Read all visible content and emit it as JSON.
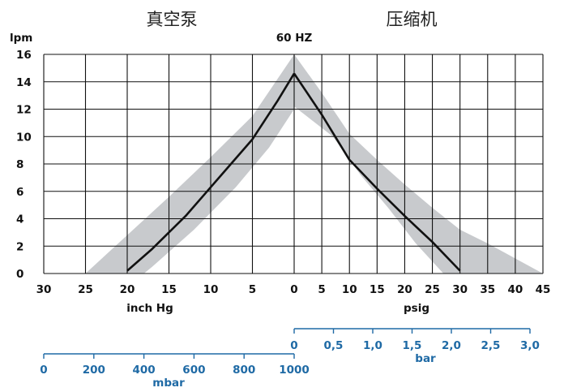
{
  "chart_data": {
    "type": "line",
    "header_left": "真空泵",
    "header_right": "压缩机",
    "title": "60 HZ",
    "ylabel": "lpm",
    "ylim": [
      0,
      16
    ],
    "yticks": [
      "0",
      "2",
      "4",
      "6",
      "8",
      "10",
      "12",
      "14",
      "16"
    ],
    "vacuum_axis": {
      "xlabel": "inch Hg",
      "range": [
        30,
        0
      ],
      "ticks": [
        "30",
        "25",
        "20",
        "15",
        "10",
        "5",
        "0"
      ]
    },
    "pressure_axis": {
      "xlabel": "psig",
      "range": [
        0,
        45
      ],
      "ticks": [
        "0",
        "5",
        "10",
        "15",
        "20",
        "25",
        "30",
        "35",
        "40",
        "45"
      ]
    },
    "bar_axis": {
      "label": "bar",
      "range": [
        0,
        3.0
      ],
      "ticks": [
        "0",
        "0,5",
        "1,0",
        "1,5",
        "2,0",
        "2,5",
        "3,0"
      ]
    },
    "mbar_axis": {
      "label": "mbar",
      "range": [
        0,
        1000
      ],
      "ticks": [
        "0",
        "200",
        "400",
        "600",
        "800",
        "1000"
      ]
    },
    "series": [
      {
        "side": "vacuum",
        "x_inchHg": [
          20,
          17,
          13,
          9,
          5,
          2,
          0
        ],
        "y_lpm": [
          0.2,
          1.8,
          4.2,
          7.0,
          9.8,
          12.6,
          14.6
        ]
      },
      {
        "side": "pressure",
        "x_psig": [
          0,
          5,
          10,
          15,
          20,
          25,
          30
        ],
        "y_lpm": [
          14.6,
          11.6,
          8.3,
          6.2,
          4.2,
          2.3,
          0.2
        ]
      }
    ],
    "tolerance_band": {
      "vacuum_upper_x_inchHg": [
        25,
        20,
        15,
        10,
        5,
        0
      ],
      "vacuum_upper_y_lpm": [
        0,
        2.8,
        5.6,
        8.5,
        11.5,
        16
      ],
      "vacuum_lower_x_inchHg": [
        0,
        3,
        7,
        12,
        17,
        18
      ],
      "vacuum_lower_y_lpm": [
        12.0,
        9.2,
        6.3,
        3.2,
        0.5,
        0
      ],
      "pressure_upper_x_psig": [
        0,
        5,
        10,
        15,
        20,
        25,
        30,
        35,
        45
      ],
      "pressure_upper_y_lpm": [
        16,
        13.2,
        10.2,
        8.3,
        6.5,
        4.8,
        3.2,
        2.2,
        0
      ],
      "pressure_lower_x_psig": [
        27,
        22,
        17,
        12,
        7,
        0
      ],
      "pressure_lower_y_lpm": [
        0,
        2.2,
        4.8,
        7.2,
        10.0,
        12.2
      ],
      "color": "#c8cacd"
    },
    "grid": true,
    "line_color": "#111111",
    "secondary_axis_color": "#1f6aa5"
  }
}
